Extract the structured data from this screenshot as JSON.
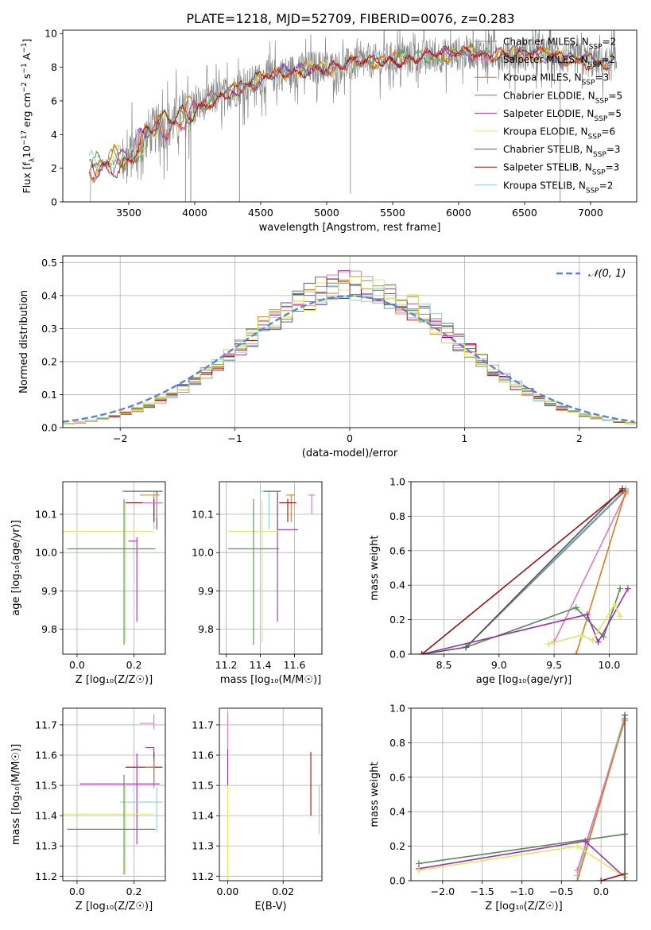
{
  "figure_title": "PLATE=1218, MJD=52709, FIBERID=0076, z=0.283",
  "colors": {
    "chabrier_miles": "#888888",
    "salpeter_miles": "#e377c2",
    "kroupa_miles": "#e07b20",
    "chabrier_elodie": "#5a8a5a",
    "salpeter_elodie": "#a030b0",
    "kroupa_elodie": "#dde860",
    "chabrier_stelib": "#555555",
    "salpeter_stelib": "#9c1010",
    "kroupa_stelib": "#86d0e0",
    "gauss": "#5b84d8",
    "grid": "#b0b0b0"
  },
  "chart_data": [
    {
      "id": "spectrum",
      "type": "line",
      "xlabel": "wavelength [Angstrom, rest frame]",
      "xlim": [
        3000,
        7350
      ],
      "ylim": [
        0,
        10.2
      ],
      "xticks": [
        3500,
        4000,
        4500,
        5000,
        5500,
        6000,
        6500,
        7000
      ],
      "yticks": [
        0,
        2,
        4,
        6,
        8,
        10
      ],
      "ylabel_pre": "Flux [f",
      "ylabel_sub": "λ",
      "ylabel_post": "10",
      "ylabel_sup1": "−17",
      "ylabel_mid": " erg cm",
      "ylabel_sup2": "−2",
      "ylabel_mid2": " s",
      "ylabel_sup3": "−1",
      "ylabel_mid3": " A",
      "ylabel_sup4": "−1",
      "ylabel_end": "]",
      "continuum_x": [
        3200,
        3350,
        3500,
        3650,
        3800,
        3950,
        4100,
        4300,
        4500,
        4700,
        4900,
        5100,
        5300,
        5500,
        5700,
        5900,
        6100,
        6300,
        6500,
        6700,
        6900,
        7100
      ],
      "continuum_y": [
        2.1,
        2.3,
        2.6,
        4.1,
        4.6,
        5.3,
        6.0,
        6.6,
        7.3,
        7.7,
        8.0,
        8.0,
        8.3,
        8.5,
        8.6,
        8.7,
        8.9,
        8.8,
        8.8,
        8.7,
        8.5,
        8.2
      ],
      "legend": [
        {
          "key": "chabrier_miles",
          "pre": "Chabrier MILES, N",
          "sub": "SSP",
          "post": "=2"
        },
        {
          "key": "salpeter_miles",
          "pre": "Salpeter MILES, N",
          "sub": "SSP",
          "post": "=2"
        },
        {
          "key": "kroupa_miles",
          "pre": "Kroupa MILES, N",
          "sub": "SSP",
          "post": "=3"
        },
        {
          "key": "chabrier_elodie",
          "pre": "Chabrier ELODIE, N",
          "sub": "SSP",
          "post": "=5"
        },
        {
          "key": "salpeter_elodie",
          "pre": "Salpeter ELODIE, N",
          "sub": "SSP",
          "post": "=5"
        },
        {
          "key": "kroupa_elodie",
          "pre": "Kroupa ELODIE, N",
          "sub": "SSP",
          "post": "=6"
        },
        {
          "key": "chabrier_stelib",
          "pre": "Chabrier STELIB, N",
          "sub": "SSP",
          "post": "=3"
        },
        {
          "key": "salpeter_stelib",
          "pre": "Salpeter STELIB, N",
          "sub": "SSP",
          "post": "=3"
        },
        {
          "key": "kroupa_stelib",
          "pre": "Kroupa STELIB, N",
          "sub": "SSP",
          "post": "=2"
        }
      ]
    },
    {
      "id": "residuals",
      "type": "histogram",
      "xlabel": "(data-model)/error",
      "ylabel": "Normed distribution",
      "xlim": [
        -2.5,
        2.5
      ],
      "ylim": [
        0,
        0.52
      ],
      "xticks": [
        -2,
        -1,
        0,
        1,
        2
      ],
      "xtick_labels": [
        "−2",
        "−1",
        "0",
        "1",
        "2"
      ],
      "yticks": [
        0,
        0.1,
        0.2,
        0.3,
        0.4,
        0.5
      ],
      "ytick_labels": [
        "0.0",
        "0.1",
        "0.2",
        "0.3",
        "0.4",
        "0.5"
      ],
      "bin_width": 0.1,
      "legend_label": "𝒩(0, 1)",
      "hist_center": [
        0.02,
        0.43
      ]
    },
    {
      "id": "age_vs_Z",
      "type": "errorbar",
      "xlabel": "Z [log₁₀(Z/Z☉)]",
      "ylabel": "age  [log₁₀(age/yr)]",
      "xlim": [
        -0.05,
        0.31
      ],
      "ylim": [
        9.735,
        10.185
      ],
      "xticks": [
        0.0,
        0.2
      ],
      "xtick_labels": [
        "0.0",
        "0.2"
      ],
      "yticks": [
        9.8,
        9.9,
        10.0,
        10.1
      ],
      "ytick_labels": [
        "9.8",
        "9.9",
        "10.0",
        "10.1"
      ],
      "points": [
        {
          "key": "kroupa_stelib",
          "x": 0.27,
          "y": 10.16,
          "xerr": [
            0.09,
            0.03
          ],
          "yerr": [
            0.1,
            0.0
          ]
        },
        {
          "key": "chabrier_stelib",
          "x": 0.28,
          "y": 10.16,
          "xerr": [
            0.12,
            0.02
          ],
          "yerr": [
            0.1,
            0.0
          ]
        },
        {
          "key": "kroupa_miles",
          "x": 0.27,
          "y": 10.15,
          "xerr": [
            0.05,
            0.02
          ],
          "yerr": [
            0.07,
            0.0
          ]
        },
        {
          "key": "salpeter_stelib",
          "x": 0.27,
          "y": 10.13,
          "xerr": [
            0.1,
            0.03
          ],
          "yerr": [
            0.05,
            0.01
          ]
        },
        {
          "key": "salpeter_miles",
          "x": 0.28,
          "y": 10.13,
          "xerr": [
            0.05,
            0.02
          ],
          "yerr": [
            0.04,
            0.02
          ]
        },
        {
          "key": "kroupa_elodie",
          "x": 0.17,
          "y": 10.055,
          "xerr": [
            0.26,
            0.1
          ],
          "yerr": [
            0.29,
            0.08
          ]
        },
        {
          "key": "salpeter_elodie",
          "x": 0.21,
          "y": 10.03,
          "xerr": [
            0.03,
            0.0
          ],
          "yerr": [
            0.21,
            0.01
          ]
        },
        {
          "key": "chabrier_elodie",
          "x": 0.165,
          "y": 10.01,
          "xerr": [
            0.2,
            0.11
          ],
          "yerr": [
            0.25,
            0.13
          ]
        }
      ]
    },
    {
      "id": "age_vs_mass",
      "type": "errorbar",
      "xlabel": "mass [log₁₀(M/M☉)]",
      "ylabel": "",
      "xlim": [
        11.16,
        11.76
      ],
      "ylim": [
        9.735,
        10.185
      ],
      "xticks": [
        11.2,
        11.4,
        11.6
      ],
      "xtick_labels": [
        "11.2",
        "11.4",
        "11.6"
      ],
      "yticks": [
        9.8,
        9.9,
        10.0,
        10.1
      ],
      "ytick_labels": [
        "9.8",
        "9.9",
        "10.0",
        "10.1"
      ],
      "points": [
        {
          "key": "kroupa_stelib",
          "x": 11.45,
          "y": 10.16,
          "xerr": [
            0.05,
            0.05
          ],
          "yerr": [
            0.1,
            0.0
          ]
        },
        {
          "key": "chabrier_stelib",
          "x": 11.5,
          "y": 10.16,
          "xerr": [
            0.08,
            0.02
          ],
          "yerr": [
            0.1,
            0.0
          ]
        },
        {
          "key": "salpeter_miles",
          "x": 11.7,
          "y": 10.15,
          "xerr": [
            0.02,
            0.02
          ],
          "yerr": [
            0.05,
            0.0
          ]
        },
        {
          "key": "kroupa_miles",
          "x": 11.58,
          "y": 10.15,
          "xerr": [
            0.03,
            0.02
          ],
          "yerr": [
            0.07,
            0.0
          ]
        },
        {
          "key": "salpeter_stelib",
          "x": 11.56,
          "y": 10.13,
          "xerr": [
            0.05,
            0.05
          ],
          "yerr": [
            0.05,
            0.01
          ]
        },
        {
          "key": "salpeter_elodie",
          "x": 11.5,
          "y": 10.06,
          "xerr": [
            0.0,
            0.12
          ],
          "yerr": [
            0.24,
            0.09
          ]
        },
        {
          "key": "kroupa_elodie",
          "x": 11.41,
          "y": 10.055,
          "xerr": [
            0.2,
            0.1
          ],
          "yerr": [
            0.29,
            0.08
          ]
        },
        {
          "key": "chabrier_elodie",
          "x": 11.36,
          "y": 10.01,
          "xerr": [
            0.15,
            0.15
          ],
          "yerr": [
            0.25,
            0.13
          ]
        }
      ]
    },
    {
      "id": "massweight_vs_age",
      "type": "line",
      "xlabel": "age  [log₁₀(age/yr)]",
      "ylabel": "mass weight",
      "xlim": [
        8.2,
        10.25
      ],
      "ylim": [
        0,
        1.0
      ],
      "xticks": [
        8.5,
        9.0,
        9.5,
        10.0
      ],
      "xtick_labels": [
        "8.5",
        "9.0",
        "9.5",
        "10.0"
      ],
      "yticks": [
        0,
        0.2,
        0.4,
        0.6,
        0.8,
        1.0
      ],
      "ytick_labels": [
        "0.0",
        "0.2",
        "0.4",
        "0.6",
        "0.8",
        "1.0"
      ],
      "series": [
        {
          "key": "kroupa_stelib",
          "x": [
            8.7,
            10.15
          ],
          "y": [
            0.04,
            0.96
          ]
        },
        {
          "key": "chabrier_miles",
          "x": [
            8.7,
            10.15
          ],
          "y": [
            0.04,
            0.95
          ]
        },
        {
          "key": "salpeter_miles",
          "x": [
            9.5,
            10.15
          ],
          "y": [
            0.07,
            0.93
          ]
        },
        {
          "key": "kroupa_miles",
          "x": [
            9.7,
            10.15
          ],
          "y": [
            0.0,
            0.94
          ]
        },
        {
          "key": "chabrier_elodie",
          "x": [
            8.7,
            9.7,
            9.95,
            10.1
          ],
          "y": [
            0.04,
            0.27,
            0.1,
            0.38
          ]
        },
        {
          "key": "salpeter_elodie",
          "x": [
            8.3,
            9.8,
            9.9,
            10.17
          ],
          "y": [
            0.0,
            0.23,
            0.07,
            0.38
          ]
        },
        {
          "key": "kroupa_elodie",
          "x": [
            9.45,
            9.75,
            9.85,
            10.05,
            10.1
          ],
          "y": [
            0.06,
            0.11,
            0.08,
            0.29,
            0.22
          ]
        },
        {
          "key": "chabrier_stelib",
          "x": [
            8.3,
            8.7,
            10.12
          ],
          "y": [
            0.0,
            0.04,
            0.96
          ]
        },
        {
          "key": "salpeter_stelib",
          "x": [
            8.3,
            10.12
          ],
          "y": [
            0.0,
            0.95
          ]
        }
      ]
    },
    {
      "id": "mass_vs_Z",
      "type": "errorbar",
      "xlabel": "Z [log₁₀(Z/Z☉)]",
      "ylabel": "mass [log₁₀(M/M☉)]",
      "xlim": [
        -0.05,
        0.31
      ],
      "ylim": [
        11.185,
        11.755
      ],
      "xticks": [
        0.0,
        0.2
      ],
      "xtick_labels": [
        "0.0",
        "0.2"
      ],
      "yticks": [
        11.2,
        11.3,
        11.4,
        11.5,
        11.6,
        11.7
      ],
      "ytick_labels": [
        "11.2",
        "11.3",
        "11.4",
        "11.5",
        "11.6",
        "11.7"
      ],
      "points": [
        {
          "key": "salpeter_miles",
          "x": 0.27,
          "y": 11.705,
          "xerr": [
            0.05,
            0.0
          ],
          "yerr": [
            0.02,
            0.03
          ]
        },
        {
          "key": "salpeter_elodie",
          "x": 0.27,
          "y": 11.625,
          "xerr": [
            0.03,
            0.0
          ],
          "yerr": [
            0.05,
            0.0
          ]
        },
        {
          "key": "salpeter_stelib",
          "x": 0.27,
          "y": 11.56,
          "xerr": [
            0.1,
            0.03
          ],
          "yerr": [
            0.05,
            0.05
          ]
        },
        {
          "key": "kroupa_miles",
          "x": 0.27,
          "y": 11.56,
          "xerr": [
            0.03,
            0.0
          ],
          "yerr": [
            0.07,
            0.03
          ]
        },
        {
          "key": "salpeter_elodie",
          "x": 0.21,
          "y": 11.505,
          "xerr": [
            0.2,
            0.08
          ],
          "yerr": [
            0.2,
            0.1
          ]
        },
        {
          "key": "kroupa_stelib",
          "x": 0.28,
          "y": 11.445,
          "xerr": [
            0.13,
            0.02
          ],
          "yerr": [
            0.1,
            0.05
          ]
        },
        {
          "key": "kroupa_elodie",
          "x": 0.17,
          "y": 11.405,
          "xerr": [
            0.26,
            0.1
          ],
          "yerr": [
            0.2,
            0.1
          ]
        },
        {
          "key": "chabrier_elodie",
          "x": 0.165,
          "y": 11.355,
          "xerr": [
            0.2,
            0.11
          ],
          "yerr": [
            0.15,
            0.18
          ]
        }
      ]
    },
    {
      "id": "mass_vs_ebv",
      "type": "errorbar",
      "xlabel": "E(B-V)",
      "ylabel": "",
      "xlim": [
        -0.003,
        0.034
      ],
      "ylim": [
        11.185,
        11.755
      ],
      "xticks": [
        0.0,
        0.02
      ],
      "xtick_labels": [
        "0.00",
        "0.02"
      ],
      "yticks": [
        11.2,
        11.3,
        11.4,
        11.5,
        11.6,
        11.7
      ],
      "ytick_labels": [
        "11.2",
        "11.3",
        "11.4",
        "11.5",
        "11.6",
        "11.7"
      ],
      "points": [
        {
          "key": "salpeter_miles",
          "x": 0.0,
          "y": 11.65,
          "xerr": [
            0,
            0
          ],
          "yerr": [
            0.09,
            0.09
          ]
        },
        {
          "key": "salpeter_elodie",
          "x": 0.0,
          "y": 11.55,
          "xerr": [
            0,
            0
          ],
          "yerr": [
            0.06,
            0.07
          ]
        },
        {
          "key": "kroupa_elodie",
          "x": 0.0,
          "y": 11.35,
          "xerr": [
            0,
            0
          ],
          "yerr": [
            0.16,
            0.15
          ]
        },
        {
          "key": "salpeter_stelib",
          "x": 0.03,
          "y": 11.5,
          "xerr": [
            0,
            0
          ],
          "yerr": [
            0.1,
            0.11
          ]
        },
        {
          "key": "kroupa_stelib",
          "x": 0.033,
          "y": 11.42,
          "xerr": [
            0,
            0
          ],
          "yerr": [
            0.08,
            0.08
          ]
        }
      ]
    },
    {
      "id": "massweight_vs_Z",
      "type": "line",
      "xlabel": "Z [log₁₀(Z/Z☉)]",
      "ylabel": "mass weight",
      "xlim": [
        -2.4,
        0.45
      ],
      "ylim": [
        0,
        1.0
      ],
      "xticks": [
        -2.0,
        -1.5,
        -1.0,
        -0.5,
        0.0
      ],
      "xtick_labels": [
        "−2.0",
        "−1.5",
        "−1.0",
        "−0.5",
        "0.0"
      ],
      "yticks": [
        0,
        0.2,
        0.4,
        0.6,
        0.8,
        1.0
      ],
      "ytick_labels": [
        "0.0",
        "0.2",
        "0.4",
        "0.6",
        "0.8",
        "1.0"
      ],
      "series": [
        {
          "key": "kroupa_stelib",
          "x": [
            -0.3,
            0.3
          ],
          "y": [
            0.03,
            0.96
          ]
        },
        {
          "key": "salpeter_miles",
          "x": [
            -0.3,
            0.3
          ],
          "y": [
            0.06,
            0.93
          ]
        },
        {
          "key": "kroupa_miles",
          "x": [
            -0.3,
            0.3
          ],
          "y": [
            0.0,
            0.94
          ]
        },
        {
          "key": "chabrier_elodie",
          "x": [
            -2.3,
            0.3
          ],
          "y": [
            0.1,
            0.27
          ]
        },
        {
          "key": "salpeter_elodie",
          "x": [
            -2.3,
            -0.2,
            0.3
          ],
          "y": [
            0.07,
            0.23,
            0.02
          ]
        },
        {
          "key": "kroupa_elodie",
          "x": [
            -2.3,
            -0.3,
            0.3
          ],
          "y": [
            0.06,
            0.2,
            0.02
          ]
        },
        {
          "key": "salpeter_stelib",
          "x": [
            0.0,
            0.3
          ],
          "y": [
            0.0,
            0.04
          ]
        },
        {
          "key": "chabrier_stelib",
          "x": [
            0.3,
            0.3
          ],
          "y": [
            0.0,
            0.96
          ]
        }
      ]
    }
  ]
}
